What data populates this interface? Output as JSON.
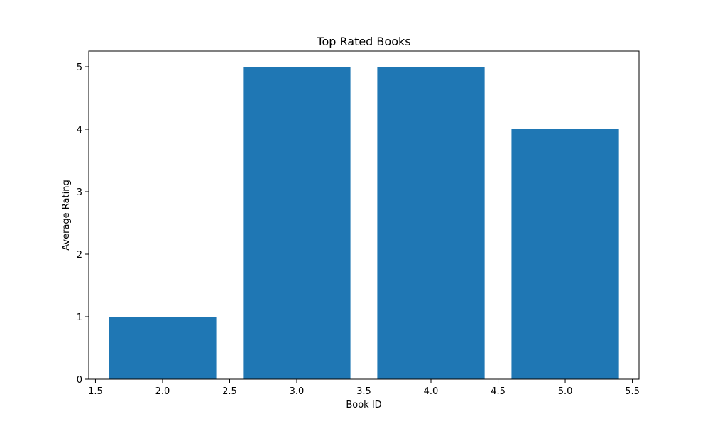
{
  "chart_data": {
    "type": "bar",
    "title": "Top Rated Books",
    "xlabel": "Book ID",
    "ylabel": "Average Rating",
    "x": [
      2,
      3,
      4,
      5
    ],
    "values": [
      1,
      5,
      5,
      4
    ],
    "bar_width": 0.8,
    "xlim": [
      1.45,
      5.55
    ],
    "ylim": [
      0,
      5.25
    ],
    "xticks": [
      1.5,
      2.0,
      2.5,
      3.0,
      3.5,
      4.0,
      4.5,
      5.0,
      5.5
    ],
    "xtick_labels": [
      "1.5",
      "2.0",
      "2.5",
      "3.0",
      "3.5",
      "4.0",
      "4.5",
      "5.0",
      "5.5"
    ],
    "yticks": [
      0,
      1,
      2,
      3,
      4,
      5
    ],
    "ytick_labels": [
      "0",
      "1",
      "2",
      "3",
      "4",
      "5"
    ],
    "grid": false,
    "legend": "none",
    "colors": {
      "bar": "#1f77b4",
      "axes": "#000000",
      "background": "#ffffff"
    }
  }
}
